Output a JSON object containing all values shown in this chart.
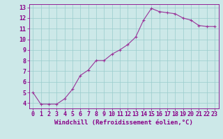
{
  "x": [
    0,
    1,
    2,
    3,
    4,
    5,
    6,
    7,
    8,
    9,
    10,
    11,
    12,
    13,
    14,
    15,
    16,
    17,
    18,
    19,
    20,
    21,
    22,
    23
  ],
  "y": [
    5.0,
    3.9,
    3.9,
    3.9,
    4.4,
    5.3,
    6.6,
    7.1,
    8.0,
    8.0,
    8.6,
    9.0,
    9.5,
    10.2,
    11.8,
    12.9,
    12.6,
    12.5,
    12.4,
    12.0,
    11.8,
    11.3,
    11.2,
    11.2
  ],
  "line_color": "#993399",
  "marker": "+",
  "bg_color": "#cce8e8",
  "grid_color": "#99cccc",
  "xlabel": "Windchill (Refroidissement éolien,°C)",
  "xlim": [
    -0.5,
    23.5
  ],
  "ylim": [
    3.5,
    13.3
  ],
  "yticks": [
    4,
    5,
    6,
    7,
    8,
    9,
    10,
    11,
    12,
    13
  ],
  "font_color": "#880088",
  "tick_color": "#880088",
  "label_fontsize": 6.5,
  "tick_fontsize": 6.0,
  "linewidth": 0.8,
  "markersize": 3,
  "marker_linewidth": 0.8
}
